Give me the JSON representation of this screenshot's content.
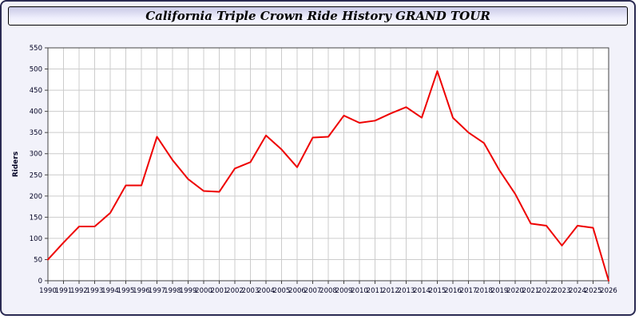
{
  "title": "California Triple Crown Ride History GRAND TOUR",
  "colors": {
    "line": "#ee0000",
    "grid": "#cccccc",
    "plot_background": "#ffffff",
    "frame": "#444444",
    "page_background": "#f2f2fa",
    "tick_text": "#000022"
  },
  "chart_data": {
    "type": "line",
    "title": "California Triple Crown Ride History GRAND TOUR",
    "xlabel": "",
    "ylabel": "Riders",
    "ylim": [
      0,
      550
    ],
    "ytick_step": 50,
    "grid": true,
    "legend_position": "none",
    "x": [
      1990,
      1991,
      1992,
      1993,
      1994,
      1995,
      1996,
      1997,
      1998,
      1999,
      2000,
      2001,
      2002,
      2003,
      2004,
      2005,
      2006,
      2007,
      2008,
      2009,
      2010,
      2011,
      2012,
      2013,
      2014,
      2015,
      2016,
      2017,
      2018,
      2019,
      2020,
      2021,
      2022,
      2023,
      2024,
      2025,
      2026
    ],
    "series": [
      {
        "name": "Riders",
        "color": "#ee0000",
        "values": [
          50,
          90,
          128,
          128,
          160,
          225,
          225,
          340,
          285,
          240,
          212,
          210,
          265,
          280,
          343,
          310,
          268,
          338,
          340,
          390,
          373,
          378,
          395,
          410,
          385,
          495,
          385,
          350,
          325,
          260,
          205,
          135,
          130,
          83,
          130,
          125,
          0
        ]
      }
    ]
  }
}
